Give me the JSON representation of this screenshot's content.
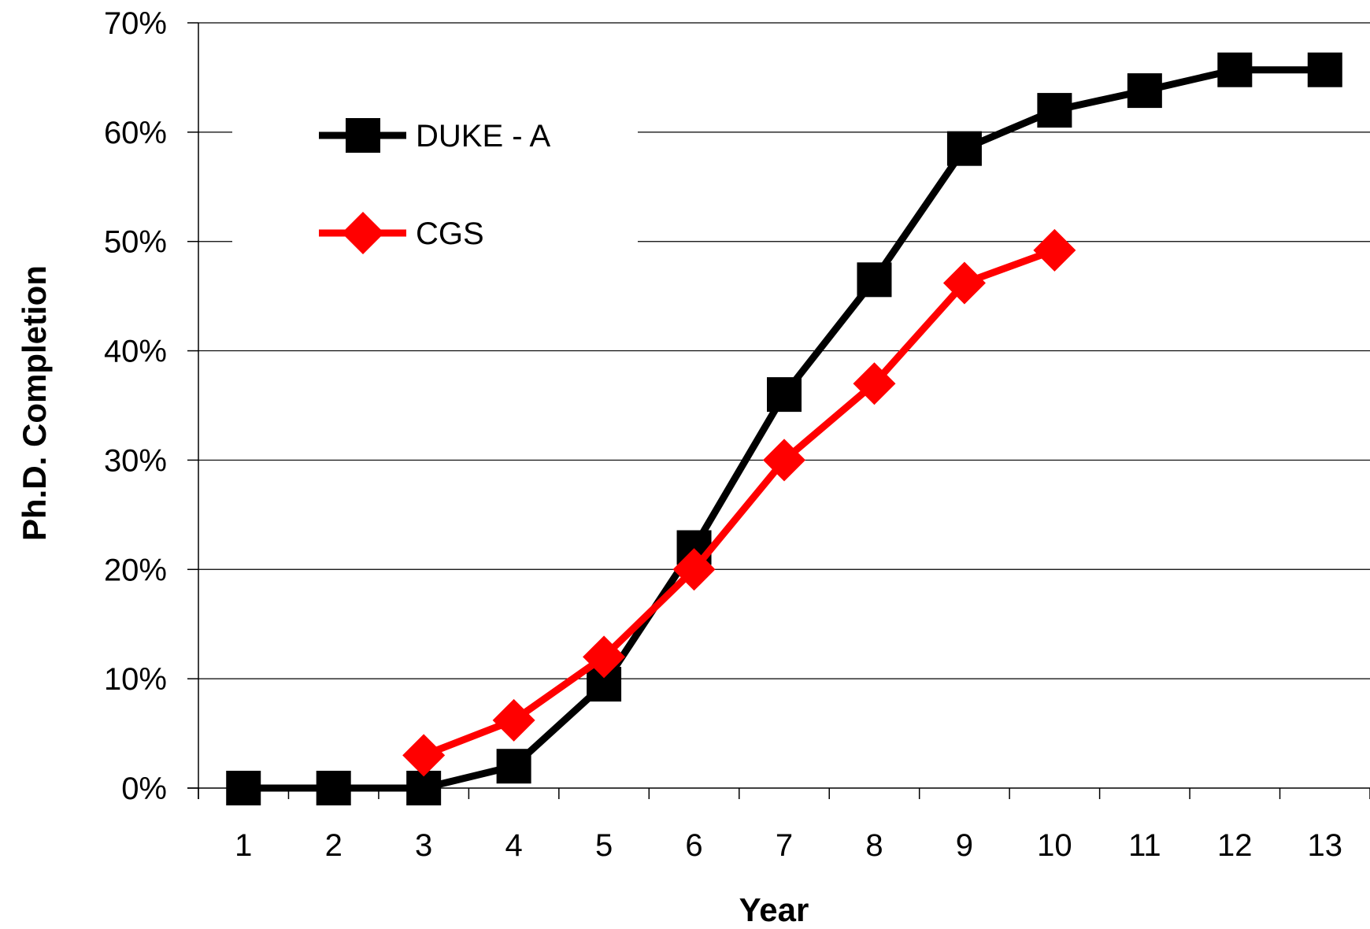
{
  "chart_data": {
    "type": "line",
    "title": "",
    "xlabel": "Year",
    "ylabel": "Ph.D. Completion",
    "categories": [
      "1",
      "2",
      "3",
      "4",
      "5",
      "6",
      "7",
      "8",
      "9",
      "10",
      "11",
      "12",
      "13"
    ],
    "ylim": [
      0,
      0.7
    ],
    "yticks": [
      "0%",
      "10%",
      "20%",
      "30%",
      "40%",
      "50%",
      "60%",
      "70%"
    ],
    "grid": "horizontal",
    "legend_position": "top-left",
    "series": [
      {
        "name": "DUKE - A",
        "color": "#000000",
        "marker": "square",
        "values": [
          0.0,
          0.0,
          0.0,
          0.02,
          0.095,
          0.22,
          0.36,
          0.465,
          0.585,
          0.62,
          0.638,
          0.657,
          0.657
        ]
      },
      {
        "name": "CGS",
        "color": "#ff0000",
        "marker": "diamond",
        "values": [
          null,
          null,
          0.03,
          0.062,
          0.12,
          0.2,
          0.3,
          0.37,
          0.462,
          0.492,
          null,
          null,
          null
        ]
      }
    ]
  }
}
